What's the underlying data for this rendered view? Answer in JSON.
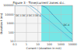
{
  "chart_data": {
    "type": "line",
    "title": "Figure 3 - Time/current zones d.c.",
    "x_label": "Current I (duration in mA)",
    "y_label": "Duration t (ms)",
    "log": true,
    "grid": true,
    "xlim": [
      0.1,
      10000
    ],
    "ylim": [
      10,
      100000
    ],
    "xticks": [
      0.1,
      1,
      10,
      100,
      1000,
      10000
    ],
    "yticks": [
      10,
      100,
      1000,
      10000,
      100000
    ],
    "series": [
      {
        "color": "#90c8e0",
        "x": [
          0.1,
          0.5,
          1,
          2,
          5,
          10,
          20,
          50,
          100,
          200,
          500,
          1000,
          2000,
          5000,
          10000
        ],
        "values": [
          100000,
          100000,
          100000,
          60000,
          20000,
          10000,
          5000,
          2000,
          1000,
          500,
          200,
          100,
          50,
          20,
          10
        ]
      },
      {
        "color": "#50a8d0",
        "x": [
          2,
          5,
          10,
          20,
          50,
          100,
          200,
          500,
          1000,
          2000,
          5000,
          10000
        ],
        "values": [
          100000,
          50000,
          25000,
          10000,
          4000,
          2000,
          900,
          350,
          170,
          80,
          30,
          15
        ]
      },
      {
        "color": "#2888b8",
        "x": [
          20,
          50,
          100,
          200,
          500,
          1000,
          2000,
          5000,
          10000
        ],
        "values": [
          100000,
          60000,
          25000,
          9000,
          2800,
          1100,
          420,
          130,
          65
        ]
      },
      {
        "type": "area",
        "color": "#40e0e0",
        "x": [
          20,
          50,
          100,
          200,
          500,
          1000,
          2000,
          5000,
          10000
        ],
        "values": [
          100000,
          60000,
          25000,
          9000,
          2800,
          1100,
          420,
          130,
          65
        ]
      }
    ],
    "annotations": [
      {
        "text": "DC-1  DC-2  DC-3  DC-4",
        "x": 0.12,
        "y": 6000
      },
      {
        "text": "DC-4",
        "x": 3000,
        "y": 600
      }
    ]
  }
}
